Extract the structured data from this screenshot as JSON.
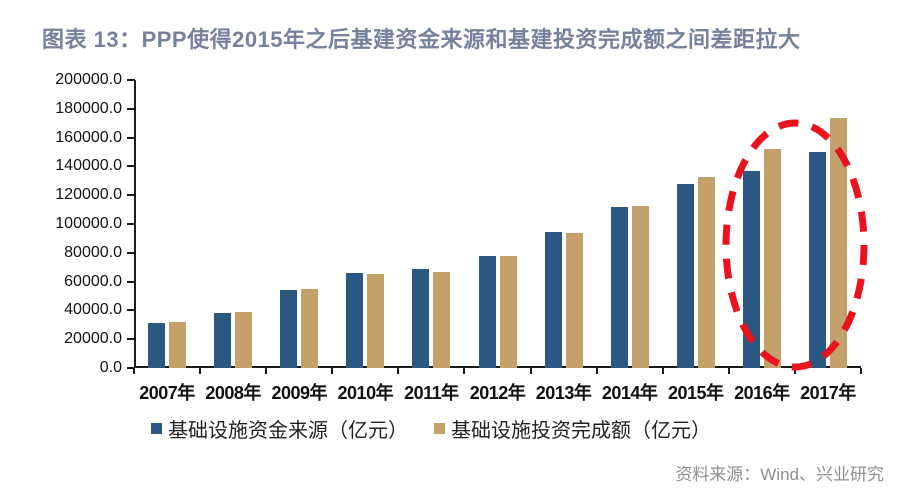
{
  "page": {
    "title": "图表 13：PPP使得2015年之后基建资金来源和基建投资完成额之间差距拉大",
    "source": "资料来源：Wind、兴业研究"
  },
  "colors": {
    "title_text": "#76829c",
    "axis": "#1a1a1a",
    "source_text": "#8f8f8f",
    "series_funding": "#2a5882",
    "series_completion": "#c4a16a",
    "annotation_red": "#e8131c"
  },
  "chart_data": {
    "type": "bar",
    "title": "图表 13：PPP使得2015年之后基建资金来源和基建投资完成额之间差距拉大",
    "categories": [
      "2007年",
      "2008年",
      "2009年",
      "2010年",
      "2011年",
      "2012年",
      "2013年",
      "2014年",
      "2015年",
      "2016年",
      "2017年"
    ],
    "series": [
      {
        "name": "基础设施资金来源（亿元）",
        "color": "#2a5882",
        "values": [
          31000,
          38500,
          54500,
          66000,
          68500,
          77500,
          94500,
          111500,
          127500,
          137000,
          150000
        ]
      },
      {
        "name": "基础设施投资完成额（亿元）",
        "color": "#c4a16a",
        "values": [
          31800,
          38800,
          55000,
          65500,
          67000,
          77500,
          94000,
          112500,
          132500,
          152000,
          173500
        ]
      }
    ],
    "xlabel": "",
    "ylabel": "",
    "ylim": [
      0,
      200000
    ],
    "ytick_interval": 20000,
    "ytick_labels": [
      "200000.0",
      "180000.0",
      "160000.0",
      "140000.0",
      "120000.0",
      "100000.0",
      "80000.0",
      "60000.0",
      "40000.0",
      "20000.0",
      "0.0"
    ],
    "grid": false,
    "legend_position": "bottom",
    "annotation": {
      "type": "dashed-ellipse",
      "around_categories": [
        "2016年",
        "2017年"
      ],
      "color": "#e8131c",
      "meaning": "highlights widening gap after PPP"
    }
  }
}
